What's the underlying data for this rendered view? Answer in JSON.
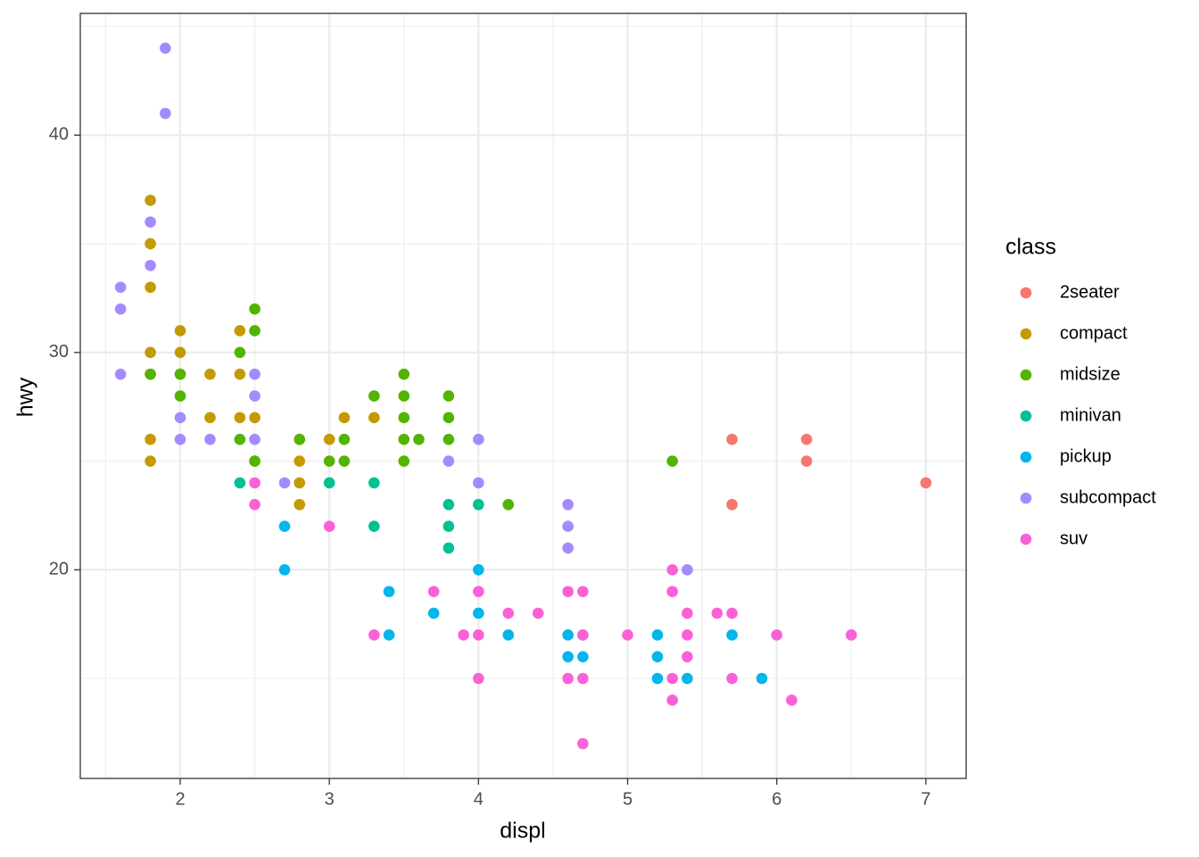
{
  "chart_data": {
    "type": "scatter",
    "x_label": "displ",
    "y_label": "hwy",
    "legend_title": "class",
    "xlim": [
      1.33,
      7.27
    ],
    "ylim": [
      10.4,
      45.6
    ],
    "xticks": [
      2,
      3,
      4,
      5,
      6,
      7
    ],
    "yticks": [
      20,
      30,
      40
    ],
    "xminor": [
      1.5,
      2.5,
      3.5,
      4.5,
      5.5,
      6.5
    ],
    "yminor": [
      15,
      25,
      35,
      45
    ],
    "grid": true,
    "series": [
      {
        "name": "2seater",
        "color": "#F8766D",
        "x": [
          5.7,
          5.7,
          6.2,
          6.2,
          7.0
        ],
        "values": [
          26,
          23,
          26,
          25,
          24
        ]
      },
      {
        "name": "compact",
        "color": "#C49A00",
        "x": [
          1.8,
          1.8,
          1.8,
          1.8,
          1.8,
          1.8,
          1.8,
          2.0,
          2.0,
          2.0,
          2.2,
          2.2,
          2.4,
          2.4,
          2.4,
          2.5,
          2.5,
          2.8,
          2.8,
          2.8,
          2.8,
          3.0,
          3.1,
          3.3
        ],
        "values": [
          37,
          35,
          33,
          30,
          29,
          26,
          25,
          31,
          30,
          29,
          29,
          27,
          31,
          29,
          27,
          27,
          25,
          26,
          25,
          24,
          23,
          26,
          27,
          27
        ]
      },
      {
        "name": "midsize",
        "color": "#53B400",
        "x": [
          1.8,
          2.0,
          2.0,
          2.4,
          2.4,
          2.5,
          2.5,
          2.5,
          2.8,
          3.0,
          3.1,
          3.1,
          3.3,
          3.5,
          3.5,
          3.5,
          3.5,
          3.5,
          3.6,
          3.8,
          3.8,
          3.8,
          4.2,
          5.3
        ],
        "values": [
          29,
          29,
          28,
          30,
          26,
          32,
          31,
          25,
          26,
          25,
          26,
          25,
          28,
          29,
          28,
          27,
          26,
          25,
          26,
          28,
          27,
          26,
          23,
          25
        ]
      },
      {
        "name": "minivan",
        "color": "#00C094",
        "x": [
          2.4,
          3.0,
          3.3,
          3.3,
          3.8,
          3.8,
          3.8,
          4.0
        ],
        "values": [
          24,
          24,
          24,
          22,
          23,
          22,
          21,
          23
        ]
      },
      {
        "name": "pickup",
        "color": "#00B6EB",
        "x": [
          2.7,
          2.7,
          3.4,
          3.4,
          3.7,
          4.0,
          4.0,
          4.2,
          4.6,
          4.6,
          4.7,
          4.7,
          5.2,
          5.2,
          5.2,
          5.4,
          5.7,
          5.9
        ],
        "values": [
          22,
          20,
          19,
          17,
          18,
          20,
          18,
          17,
          17,
          16,
          17,
          16,
          17,
          16,
          15,
          15,
          17,
          15
        ]
      },
      {
        "name": "subcompact",
        "color": "#A58AFF",
        "x": [
          1.6,
          1.6,
          1.6,
          1.8,
          1.8,
          1.9,
          1.9,
          2.0,
          2.0,
          2.2,
          2.5,
          2.5,
          2.5,
          2.7,
          3.8,
          4.0,
          4.0,
          4.6,
          4.6,
          4.6,
          5.4
        ],
        "values": [
          33,
          32,
          29,
          36,
          34,
          44,
          41,
          27,
          26,
          26,
          29,
          28,
          26,
          24,
          25,
          26,
          24,
          23,
          22,
          21,
          20
        ]
      },
      {
        "name": "suv",
        "color": "#FB61D7",
        "x": [
          2.5,
          2.5,
          3.0,
          3.3,
          3.7,
          3.9,
          4.0,
          4.0,
          4.0,
          4.2,
          4.4,
          4.6,
          4.6,
          4.7,
          4.7,
          4.7,
          4.7,
          5.0,
          5.3,
          5.3,
          5.3,
          5.3,
          5.4,
          5.4,
          5.4,
          5.6,
          5.7,
          5.7,
          6.0,
          6.1,
          6.5
        ],
        "values": [
          24,
          23,
          22,
          17,
          19,
          17,
          19,
          17,
          15,
          18,
          18,
          19,
          15,
          19,
          17,
          15,
          12,
          17,
          20,
          19,
          15,
          14,
          18,
          17,
          16,
          18,
          18,
          15,
          17,
          14,
          17
        ]
      }
    ]
  }
}
